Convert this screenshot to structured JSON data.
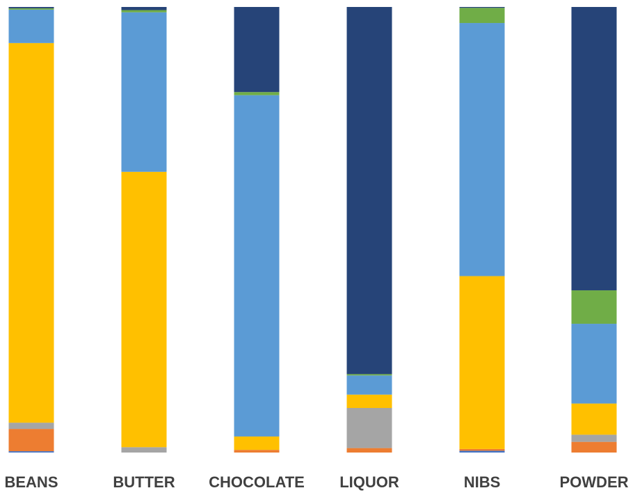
{
  "chart_data": {
    "type": "bar",
    "stacked": true,
    "normalized": true,
    "categories": [
      "BEANS",
      "BUTTER",
      "CHOCOLATE",
      "LIQUOR",
      "NIBS",
      "POWDER"
    ],
    "series": [
      {
        "color": "#4472C4",
        "values": [
          0.3,
          0.0,
          0.0,
          0.0,
          0.4,
          0.0
        ]
      },
      {
        "color": "#ED7D31",
        "values": [
          5.0,
          0.0,
          0.6,
          1.0,
          0.4,
          2.4
        ]
      },
      {
        "color": "#A5A5A5",
        "values": [
          1.4,
          1.2,
          0.0,
          9.0,
          0.0,
          1.6
        ]
      },
      {
        "color": "#FFC000",
        "values": [
          85.2,
          61.8,
          3.0,
          3.0,
          38.8,
          7.0
        ]
      },
      {
        "color": "#5B9BD5",
        "values": [
          7.5,
          35.8,
          76.6,
          4.3,
          56.8,
          17.9
        ]
      },
      {
        "color": "#70AD47",
        "values": [
          0.3,
          0.5,
          0.7,
          0.3,
          3.4,
          7.5
        ]
      },
      {
        "color": "#264478",
        "values": [
          0.3,
          0.7,
          19.1,
          82.4,
          0.2,
          63.6
        ]
      }
    ],
    "ylim": [
      0,
      100
    ]
  }
}
